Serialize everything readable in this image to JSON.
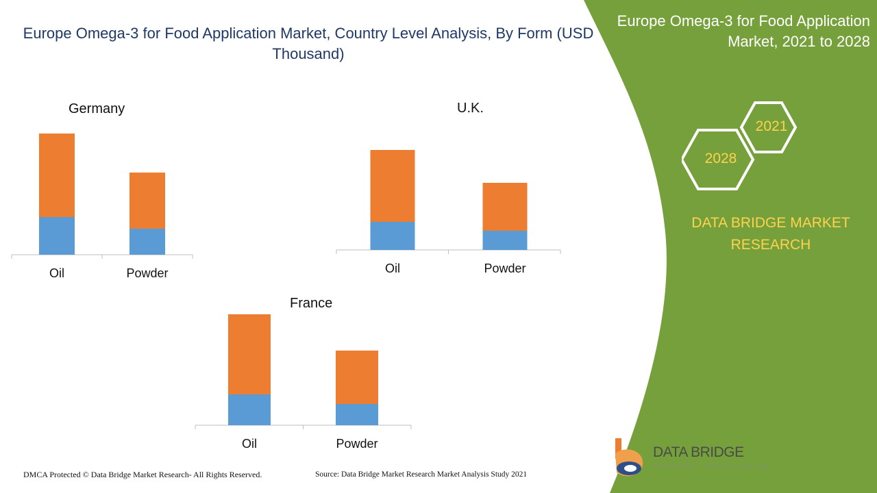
{
  "title": "Europe Omega-3 for Food Application Market, Country Level Analysis, By Form (USD Thousand)",
  "side_panel": {
    "title": "Europe Omega-3 for Food Application Market, 2021 to 2028",
    "hex_years": [
      "2021",
      "2028"
    ],
    "brand": "DATA BRIDGE MARKET RESEARCH"
  },
  "logo": {
    "name": "DATA BRIDGE",
    "tagline": "MARKET RESEARCH"
  },
  "footer": {
    "copyright": "DMCA Protected © Data Bridge Market Research- All Rights Reserved.",
    "source": "Source: Data Bridge Market Research Market Analysis Study 2021"
  },
  "colors": {
    "segment_bottom": "#5b9bd5",
    "segment_top": "#ed7d31",
    "panel_green": "#76a03b",
    "accent_yellow": "#ffd24d",
    "title_blue": "#1f3864"
  },
  "chart_data": [
    {
      "type": "bar",
      "stacked": true,
      "title": "Germany",
      "categories": [
        "Oil",
        "Powder"
      ],
      "series": [
        {
          "values": [
            55,
            38
          ]
        },
        {
          "values": [
            122,
            82
          ]
        }
      ]
    },
    {
      "type": "bar",
      "stacked": true,
      "title": "U.K.",
      "categories": [
        "Oil",
        "Powder"
      ],
      "series": [
        {
          "values": [
            41,
            28
          ]
        },
        {
          "values": [
            105,
            70
          ]
        }
      ]
    },
    {
      "type": "bar",
      "stacked": true,
      "title": "France",
      "categories": [
        "Oil",
        "Powder"
      ],
      "series": [
        {
          "values": [
            45,
            31
          ]
        },
        {
          "values": [
            117,
            78
          ]
        }
      ]
    }
  ]
}
